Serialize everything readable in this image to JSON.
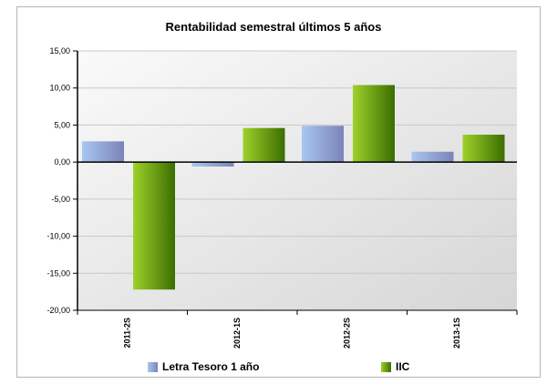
{
  "chart_data": {
    "type": "bar",
    "title": "Rentabilidad semestral últimos 5 años",
    "xlabel": "",
    "ylabel": "",
    "categories": [
      "2011-2S",
      "2012-1S",
      "2012-2S",
      "2013-1S"
    ],
    "series": [
      {
        "name": "Letra Tesoro 1 año",
        "values": [
          2.8,
          -0.6,
          4.9,
          1.4
        ],
        "color": "#8fa8e0"
      },
      {
        "name": "IIC",
        "values": [
          -17.2,
          4.6,
          10.4,
          3.7
        ],
        "color": "#6aa800"
      }
    ],
    "ylim": [
      -20,
      15
    ],
    "yticks": [
      "15,00",
      "10,00",
      "5,00",
      "0,00",
      "-5,00",
      "-10,00",
      "-15,00",
      "-20,00"
    ],
    "yticks_values": [
      15,
      10,
      5,
      0,
      -5,
      -10,
      -15,
      -20
    ],
    "grid": true,
    "legend_position": "bottom"
  },
  "icons": {
    "legend_swatch": "square"
  }
}
